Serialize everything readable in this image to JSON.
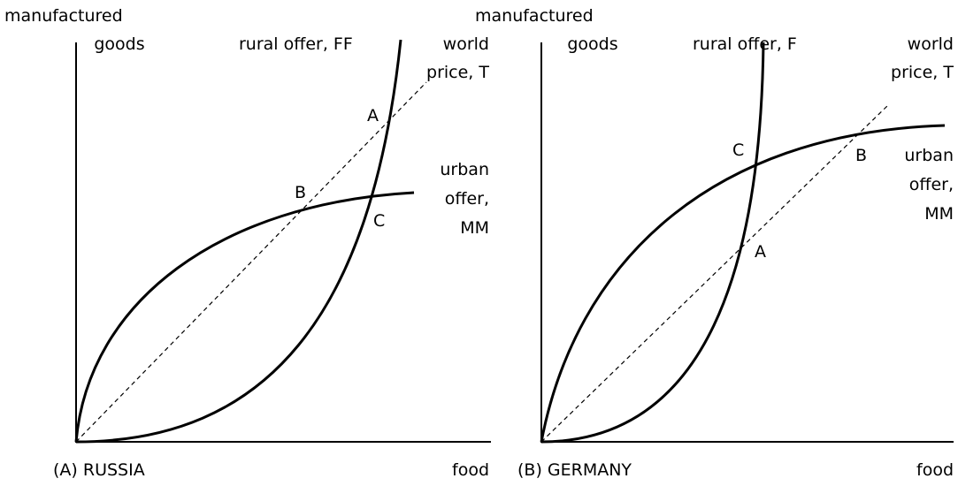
{
  "panels": [
    {
      "y_axis_label": [
        "manufactured",
        "goods"
      ],
      "rural_label": "rural offer, FF",
      "world_label": [
        "world",
        "price, T"
      ],
      "urban_label": [
        "urban",
        "offer,",
        "MM"
      ],
      "points": [
        "A",
        "B",
        "C"
      ],
      "caption": "(A) RUSSIA",
      "x_axis_label": "food"
    },
    {
      "y_axis_label": [
        "manufactured",
        "goods"
      ],
      "rural_label": "rural offer, F",
      "world_label": [
        "world",
        "price, T"
      ],
      "urban_label": [
        "urban",
        "offer,",
        "MM"
      ],
      "points": [
        "A",
        "B",
        "C"
      ],
      "caption": "(B) GERMANY",
      "x_axis_label": "food"
    }
  ]
}
